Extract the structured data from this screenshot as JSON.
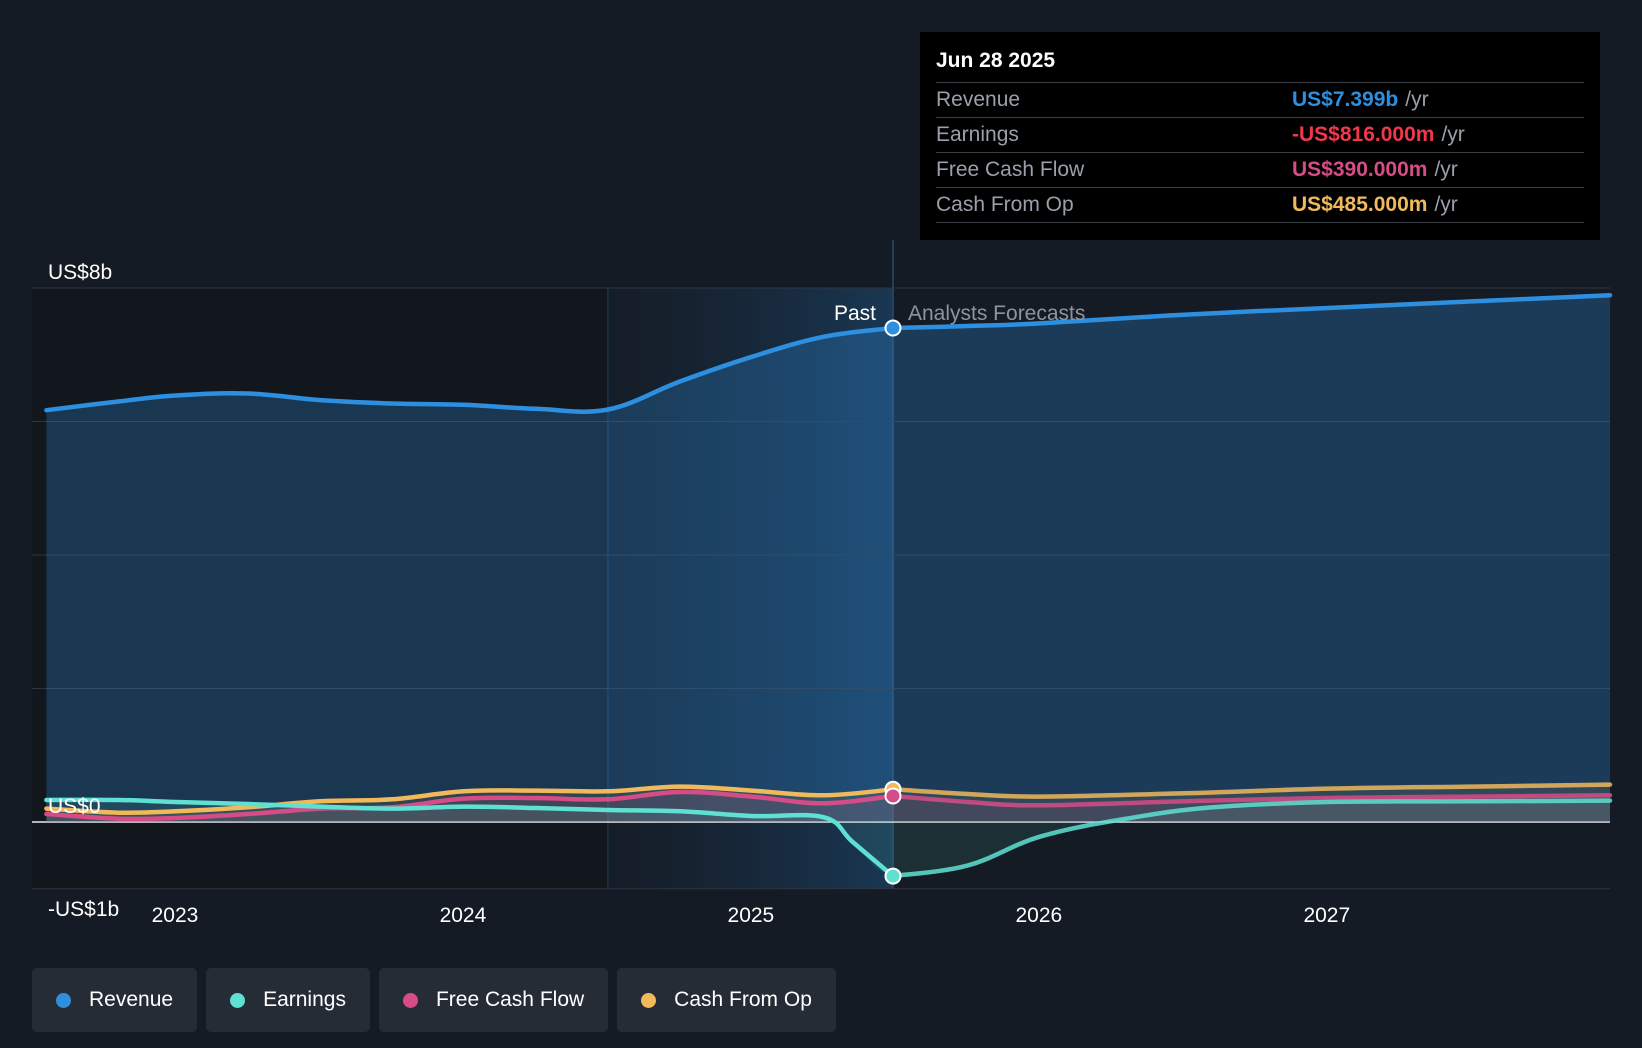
{
  "tooltip": {
    "date": "Jun 28 2025",
    "rows": [
      {
        "label": "Revenue",
        "value": "US$7.399b",
        "unit": "/yr",
        "color": "#2d8fe0"
      },
      {
        "label": "Earnings",
        "value": "-US$816.000m",
        "unit": "/yr",
        "color": "#f0384a"
      },
      {
        "label": "Free Cash Flow",
        "value": "US$390.000m",
        "unit": "/yr",
        "color": "#d64c87"
      },
      {
        "label": "Cash From Op",
        "value": "US$485.000m",
        "unit": "/yr",
        "color": "#f0b95c"
      }
    ]
  },
  "section_labels": {
    "past": "Past",
    "forecast": "Analysts Forecasts"
  },
  "legend": [
    {
      "label": "Revenue",
      "color": "#2d8fe0"
    },
    {
      "label": "Earnings",
      "color": "#5ee0d2"
    },
    {
      "label": "Free Cash Flow",
      "color": "#d64c87"
    },
    {
      "label": "Cash From Op",
      "color": "#f0b95c"
    }
  ],
  "chart_data": {
    "type": "line",
    "title": "",
    "xlabel": "",
    "ylabel": "",
    "x_ticks": [
      "2023",
      "2024",
      "2025",
      "2026",
      "2027"
    ],
    "y_ticks": [
      {
        "value": 8,
        "label": "US$8b"
      },
      {
        "value": 0,
        "label": "US$0"
      },
      {
        "value": -1,
        "label": "-US$1b"
      }
    ],
    "ylim": [
      -1,
      8
    ],
    "xlim": [
      2022.5,
      2027.98
    ],
    "grid": true,
    "past_end": 2025.49,
    "highlight_start": 2024.5,
    "unit": "US$ billions",
    "series": [
      {
        "name": "Revenue",
        "color": "#2d8fe0",
        "x": [
          2022.55,
          2022.8,
          2023.0,
          2023.25,
          2023.5,
          2023.75,
          2024.0,
          2024.25,
          2024.5,
          2024.75,
          2025.0,
          2025.25,
          2025.49,
          2025.75,
          2026.0,
          2026.5,
          2027.0,
          2027.5,
          2027.98
        ],
        "y": [
          6.17,
          6.3,
          6.39,
          6.42,
          6.32,
          6.27,
          6.25,
          6.19,
          6.18,
          6.6,
          6.97,
          7.27,
          7.4,
          7.43,
          7.47,
          7.6,
          7.7,
          7.8,
          7.89
        ]
      },
      {
        "name": "Earnings",
        "color": "#5ee0d2",
        "x": [
          2022.55,
          2022.8,
          2023.0,
          2023.25,
          2023.5,
          2023.75,
          2024.0,
          2024.25,
          2024.5,
          2024.75,
          2025.0,
          2025.25,
          2025.35,
          2025.49,
          2025.75,
          2026.0,
          2026.3,
          2026.6,
          2027.0,
          2027.5,
          2027.98
        ],
        "y": [
          0.33,
          0.33,
          0.3,
          0.27,
          0.23,
          0.2,
          0.23,
          0.21,
          0.18,
          0.16,
          0.09,
          0.07,
          -0.3,
          -0.81,
          -0.65,
          -0.22,
          0.05,
          0.22,
          0.3,
          0.31,
          0.32
        ]
      },
      {
        "name": "Free Cash Flow",
        "color": "#d64c87",
        "x": [
          2022.55,
          2022.8,
          2023.0,
          2023.25,
          2023.5,
          2023.75,
          2024.0,
          2024.25,
          2024.5,
          2024.75,
          2025.0,
          2025.25,
          2025.49,
          2025.75,
          2026.0,
          2026.5,
          2027.0,
          2027.5,
          2027.98
        ],
        "y": [
          0.12,
          0.05,
          0.06,
          0.12,
          0.2,
          0.22,
          0.35,
          0.36,
          0.34,
          0.45,
          0.38,
          0.28,
          0.39,
          0.3,
          0.25,
          0.31,
          0.36,
          0.38,
          0.4
        ]
      },
      {
        "name": "Cash From Op",
        "color": "#f0b95c",
        "x": [
          2022.55,
          2022.8,
          2023.0,
          2023.25,
          2023.5,
          2023.75,
          2024.0,
          2024.25,
          2024.5,
          2024.75,
          2025.0,
          2025.25,
          2025.49,
          2025.75,
          2026.0,
          2026.5,
          2027.0,
          2027.5,
          2027.98
        ],
        "y": [
          0.2,
          0.14,
          0.16,
          0.22,
          0.31,
          0.34,
          0.46,
          0.47,
          0.46,
          0.53,
          0.47,
          0.4,
          0.49,
          0.42,
          0.38,
          0.43,
          0.5,
          0.53,
          0.56
        ]
      }
    ]
  }
}
